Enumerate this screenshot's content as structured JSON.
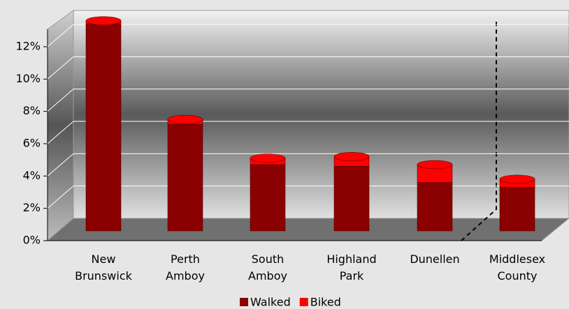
{
  "chart_data": {
    "type": "bar",
    "stacked": true,
    "categories": [
      "New Brunswick",
      "Perth Amboy",
      "South Amboy",
      "Highland Park",
      "Dunellen",
      "Middlesex County"
    ],
    "series": [
      {
        "name": "Walked",
        "color": "#8b0000",
        "values": [
          12.8,
          6.6,
          4.1,
          4.0,
          3.0,
          2.7
        ]
      },
      {
        "name": "Biked",
        "color": "#ff0000",
        "values": [
          0.2,
          0.3,
          0.4,
          0.6,
          1.1,
          0.5
        ]
      }
    ],
    "ylim": [
      0,
      12
    ],
    "yticks": [
      {
        "value": 0,
        "label": "0%"
      },
      {
        "value": 2,
        "label": "2%"
      },
      {
        "value": 4,
        "label": "4%"
      },
      {
        "value": 6,
        "label": "6%"
      },
      {
        "value": 8,
        "label": "8%"
      },
      {
        "value": 10,
        "label": "10%"
      },
      {
        "value": 12,
        "label": "12%"
      }
    ],
    "grid": true,
    "legend": "bottom"
  }
}
